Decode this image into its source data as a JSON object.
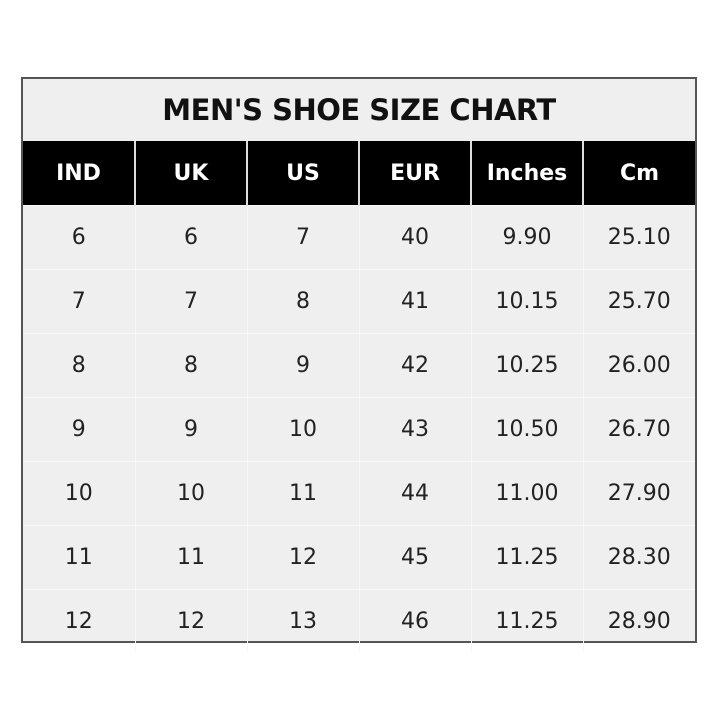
{
  "title": "MEN'S SHOE SIZE CHART",
  "columns": [
    "IND",
    "UK",
    "US",
    "EUR",
    "Inches",
    "Cm"
  ],
  "rows": [
    [
      "6",
      "6",
      "7",
      "40",
      "9.90",
      "25.10"
    ],
    [
      "7",
      "7",
      "8",
      "41",
      "10.15",
      "25.70"
    ],
    [
      "8",
      "8",
      "9",
      "42",
      "10.25",
      "26.00"
    ],
    [
      "9",
      "9",
      "10",
      "43",
      "10.50",
      "26.70"
    ],
    [
      "10",
      "10",
      "11",
      "44",
      "11.00",
      "27.90"
    ],
    [
      "11",
      "11",
      "12",
      "45",
      "11.25",
      "28.30"
    ],
    [
      "12",
      "12",
      "13",
      "46",
      "11.25",
      "28.90"
    ]
  ]
}
